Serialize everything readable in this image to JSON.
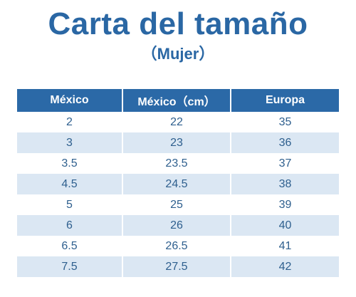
{
  "header": {
    "title": "Carta del tamaño",
    "subtitle": "（Mujer）"
  },
  "table": {
    "columns": [
      "México",
      "México（cm）",
      "Europa"
    ],
    "rows": [
      [
        "2",
        "22",
        "35"
      ],
      [
        "3",
        "23",
        "36"
      ],
      [
        "3.5",
        "23.5",
        "37"
      ],
      [
        "4.5",
        "24.5",
        "38"
      ],
      [
        "5",
        "25",
        "39"
      ],
      [
        "6",
        "26",
        "40"
      ],
      [
        "6.5",
        "26.5",
        "41"
      ],
      [
        "7.5",
        "27.5",
        "42"
      ]
    ]
  },
  "colors": {
    "accent": "#2a67a4",
    "header_bg": "#2b69a7",
    "stripe": "#dbe7f3",
    "cell_text": "#2e5f8e"
  }
}
